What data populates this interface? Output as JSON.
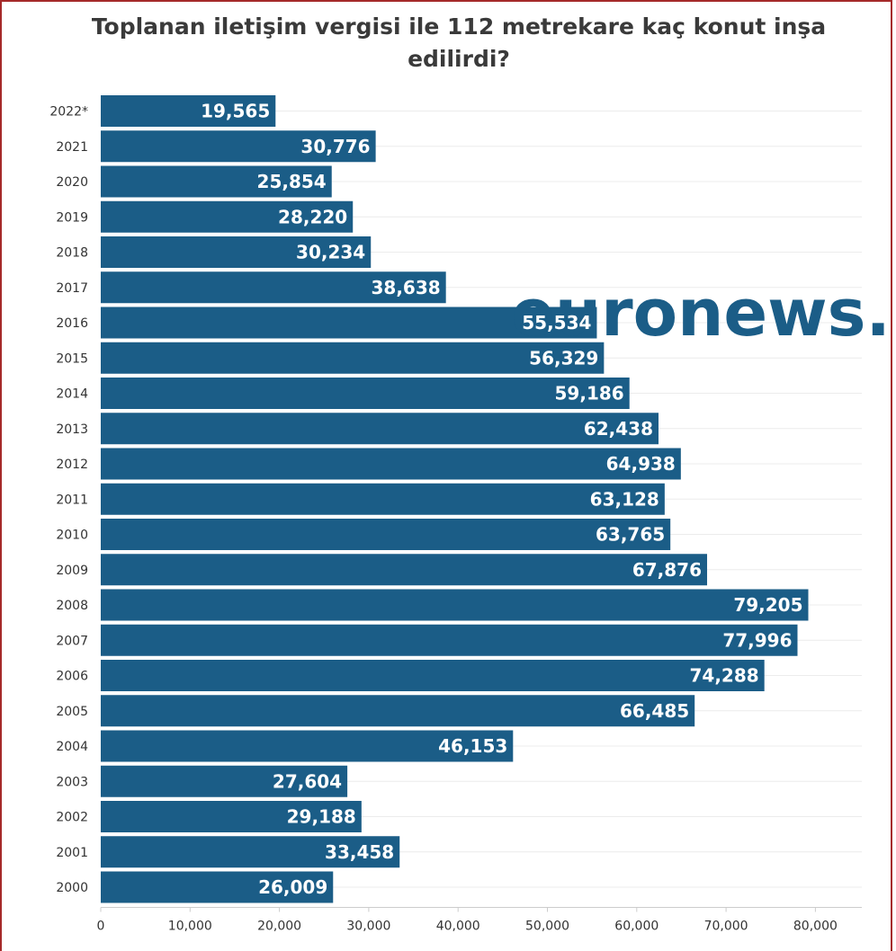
{
  "chart_data": {
    "type": "bar",
    "orientation": "horizontal",
    "title": "Toplanan iletişim vergisi ile 112 metrekare kaç konut inşa edilirdi?",
    "categories": [
      "2022*",
      "2021",
      "2020",
      "2019",
      "2018",
      "2017",
      "2016",
      "2015",
      "2014",
      "2013",
      "2012",
      "2011",
      "2010",
      "2009",
      "2008",
      "2007",
      "2006",
      "2005",
      "2004",
      "2003",
      "2002",
      "2001",
      "2000"
    ],
    "values": [
      19565,
      30776,
      25854,
      28220,
      30234,
      38638,
      55534,
      56329,
      59186,
      62438,
      64938,
      63128,
      63765,
      67876,
      79205,
      77996,
      74288,
      66485,
      46153,
      27604,
      29188,
      33458,
      26009
    ],
    "value_labels": [
      "19,565",
      "30,776",
      "25,854",
      "28,220",
      "30,234",
      "38,638",
      "55,534",
      "56,329",
      "59,186",
      "62,438",
      "64,938",
      "63,128",
      "63,765",
      "67,876",
      "79,205",
      "77,996",
      "74,288",
      "66,485",
      "46,153",
      "27,604",
      "29,188",
      "33,458",
      "26,009"
    ],
    "xticks": [
      0,
      10000,
      20000,
      30000,
      40000,
      50000,
      60000,
      70000,
      80000
    ],
    "xtick_labels": [
      "0",
      "10,000",
      "20,000",
      "30,000",
      "40,000",
      "50,000",
      "60,000",
      "70,000",
      "80,000"
    ],
    "xlim": [
      0,
      85000
    ],
    "xlabel": "",
    "ylabel": "",
    "grid": true,
    "bar_color": "#1b5d87",
    "watermark": "euronews."
  }
}
